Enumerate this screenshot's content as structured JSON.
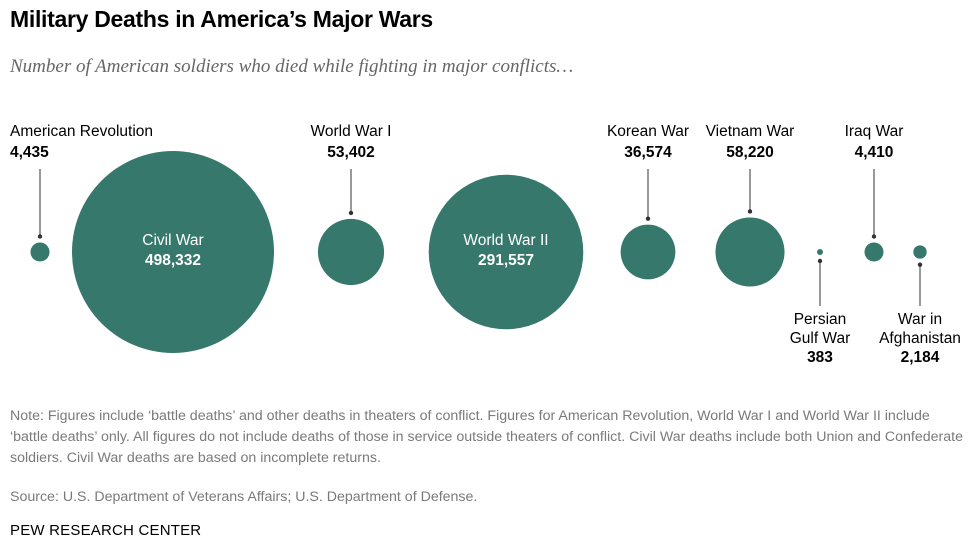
{
  "header": {
    "title": "Military Deaths in America’s Major Wars",
    "subtitle": "Number of American soldiers who died while fighting in major conflicts…"
  },
  "chart_data": {
    "type": "bubble",
    "title": "Military Deaths in America’s Major Wars",
    "subtitle": "Number of American soldiers who died while fighting in major conflicts…",
    "colors": {
      "bubble": "#36786b",
      "connector": "#333333",
      "inside_text": "#ffffff",
      "label_text": "#000000"
    },
    "wars": [
      {
        "name": "American Revolution",
        "value_label": "4,435",
        "deaths": 4435
      },
      {
        "name": "Civil War",
        "value_label": "498,332",
        "deaths": 498332
      },
      {
        "name": "World War I",
        "value_label": "53,402",
        "deaths": 53402
      },
      {
        "name": "World War II",
        "value_label": "291,557",
        "deaths": 291557
      },
      {
        "name": "Korean War",
        "value_label": "36,574",
        "deaths": 36574
      },
      {
        "name": "Vietnam War",
        "value_label": "58,220",
        "deaths": 58220
      },
      {
        "name": "Persian Gulf War",
        "name_lines": [
          "Persian",
          "Gulf War"
        ],
        "value_label": "383",
        "deaths": 383
      },
      {
        "name": "Iraq War",
        "value_label": "4,410",
        "deaths": 4410
      },
      {
        "name": "War in Afghanistan",
        "name_lines": [
          "War in",
          "Afghanistan"
        ],
        "value_label": "2,184",
        "deaths": 2184
      }
    ]
  },
  "footer": {
    "note": "Note: Figures include ‘battle deaths’ and other deaths in theaters of conflict. Figures for American Revolution, World War I and World War II include ‘battle deaths’ only. All figures do not include deaths of those in service outside theaters of conflict. Civil War deaths include both Union and Confederate soldiers. Civil War deaths are based on incomplete returns.",
    "source": "Source: U.S. Department of Veterans Affairs; U.S. Department of Defense.",
    "credit": "PEW RESEARCH CENTER"
  }
}
